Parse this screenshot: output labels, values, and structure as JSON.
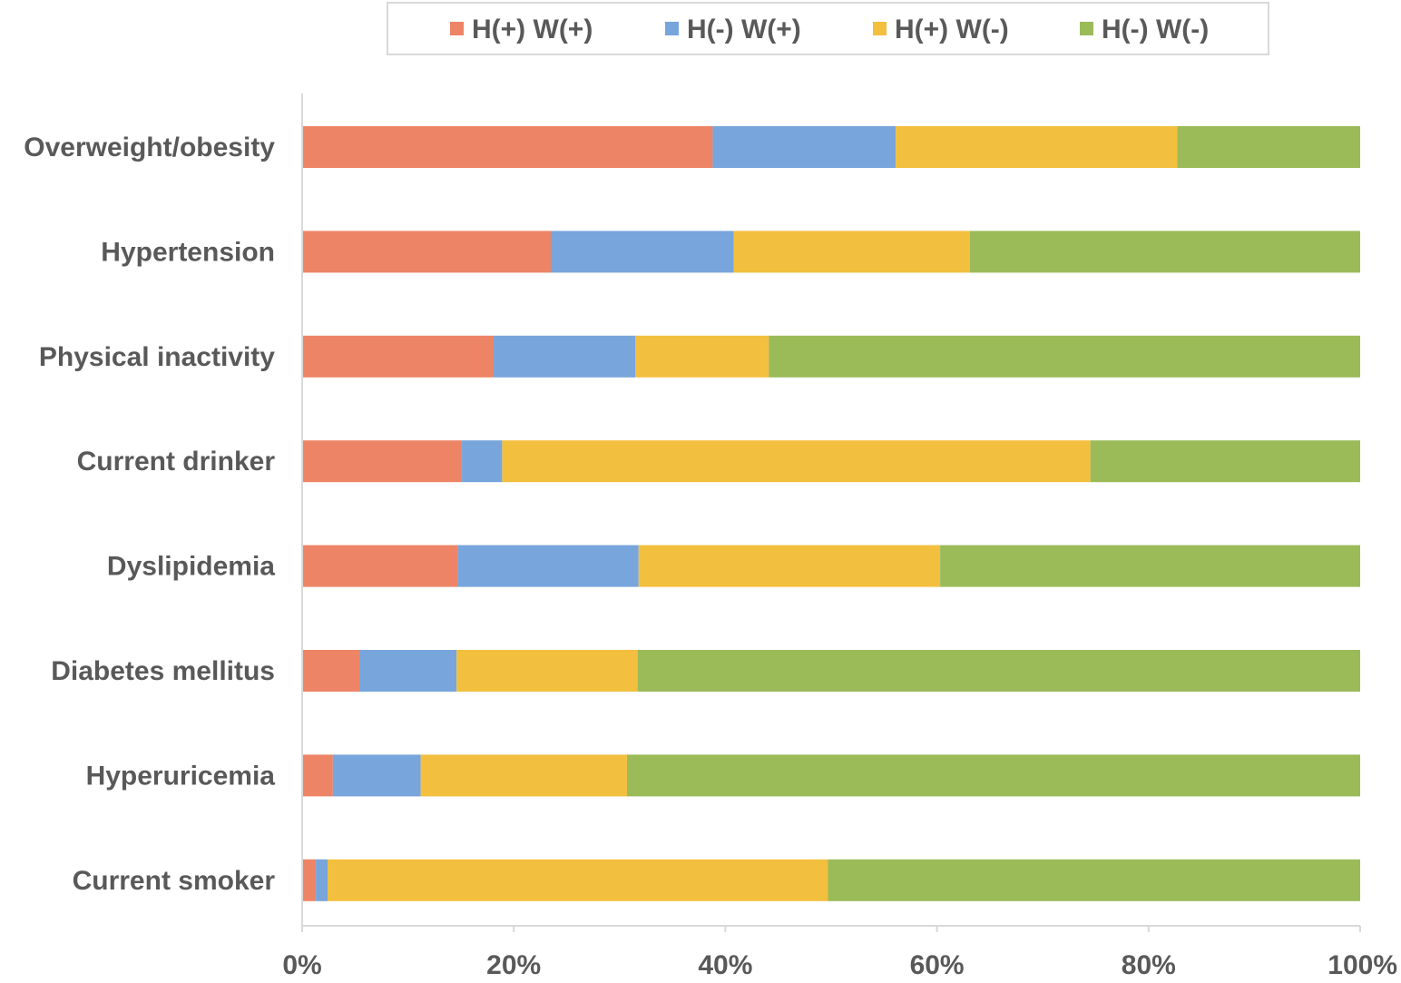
{
  "chart_data": {
    "type": "bar",
    "orientation": "horizontal",
    "stacked": "percent",
    "title": "",
    "xlabel": "",
    "ylabel": "",
    "xlim": [
      0,
      100
    ],
    "x_ticks": [
      "0%",
      "20%",
      "40%",
      "60%",
      "80%",
      "100%"
    ],
    "x_tick_values": [
      0,
      20,
      40,
      60,
      80,
      100
    ],
    "legend_position": "top",
    "grid": false,
    "categories": [
      "Overweight/obesity",
      "Hypertension",
      "Physical inactivity",
      "Current drinker",
      "Dyslipidemia",
      "Diabetes mellitus",
      "Hyperuricemia",
      "Current smoker"
    ],
    "series": [
      {
        "name": "H(+) W(+)",
        "color": "#ED8466",
        "values": [
          38.8,
          23.5,
          18.1,
          15.1,
          14.7,
          5.4,
          2.9,
          1.3
        ]
      },
      {
        "name": "H(-) W(+)",
        "color": "#77A5DC",
        "values": [
          17.3,
          17.3,
          13.4,
          3.8,
          17.1,
          9.2,
          8.3,
          1.1
        ]
      },
      {
        "name": "H(+) W(-)",
        "color": "#F3BF3E",
        "values": [
          26.6,
          22.3,
          12.6,
          55.6,
          28.5,
          17.1,
          19.5,
          47.3
        ]
      },
      {
        "name": "H(-) W(-)",
        "color": "#9BBB59",
        "values": [
          17.3,
          36.9,
          55.9,
          25.5,
          39.7,
          68.3,
          69.3,
          50.3
        ]
      }
    ]
  }
}
